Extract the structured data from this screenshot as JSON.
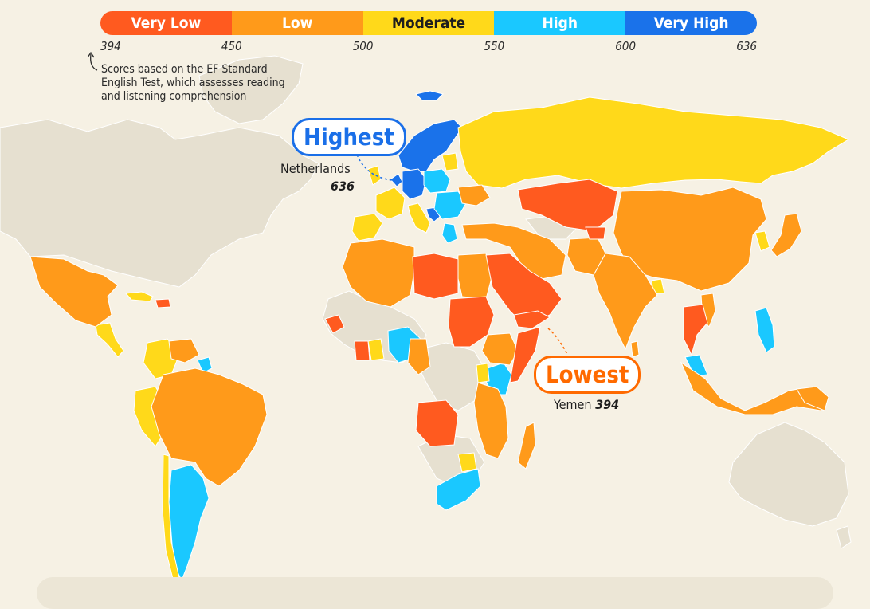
{
  "legend": {
    "categories": [
      {
        "label": "Very Low",
        "color": "#ff5a1f",
        "text_color": "#ffffff"
      },
      {
        "label": "Low",
        "color": "#ff9a1a",
        "text_color": "#ffffff"
      },
      {
        "label": "Moderate",
        "color": "#ffd91a",
        "text_color": "#1e1e1e"
      },
      {
        "label": "High",
        "color": "#1ac8ff",
        "text_color": "#ffffff"
      },
      {
        "label": "Very High",
        "color": "#1a72ea",
        "text_color": "#ffffff"
      }
    ],
    "ticks": [
      "394",
      "450",
      "500",
      "550",
      "600",
      "636"
    ]
  },
  "note": "Scores based on the EF Standard English Test, which assesses reading and listening comprehension",
  "highest": {
    "label": "Highest",
    "country": "Netherlands",
    "score": "636"
  },
  "lowest": {
    "label": "Lowest",
    "country": "Yemen",
    "score": "394"
  },
  "colors": {
    "background": "#f6f1e4",
    "no_data": "#e6e0d0",
    "border": "#ffffff",
    "highest_accent": "#1a6fe8",
    "lowest_accent": "#ff6a00"
  }
}
